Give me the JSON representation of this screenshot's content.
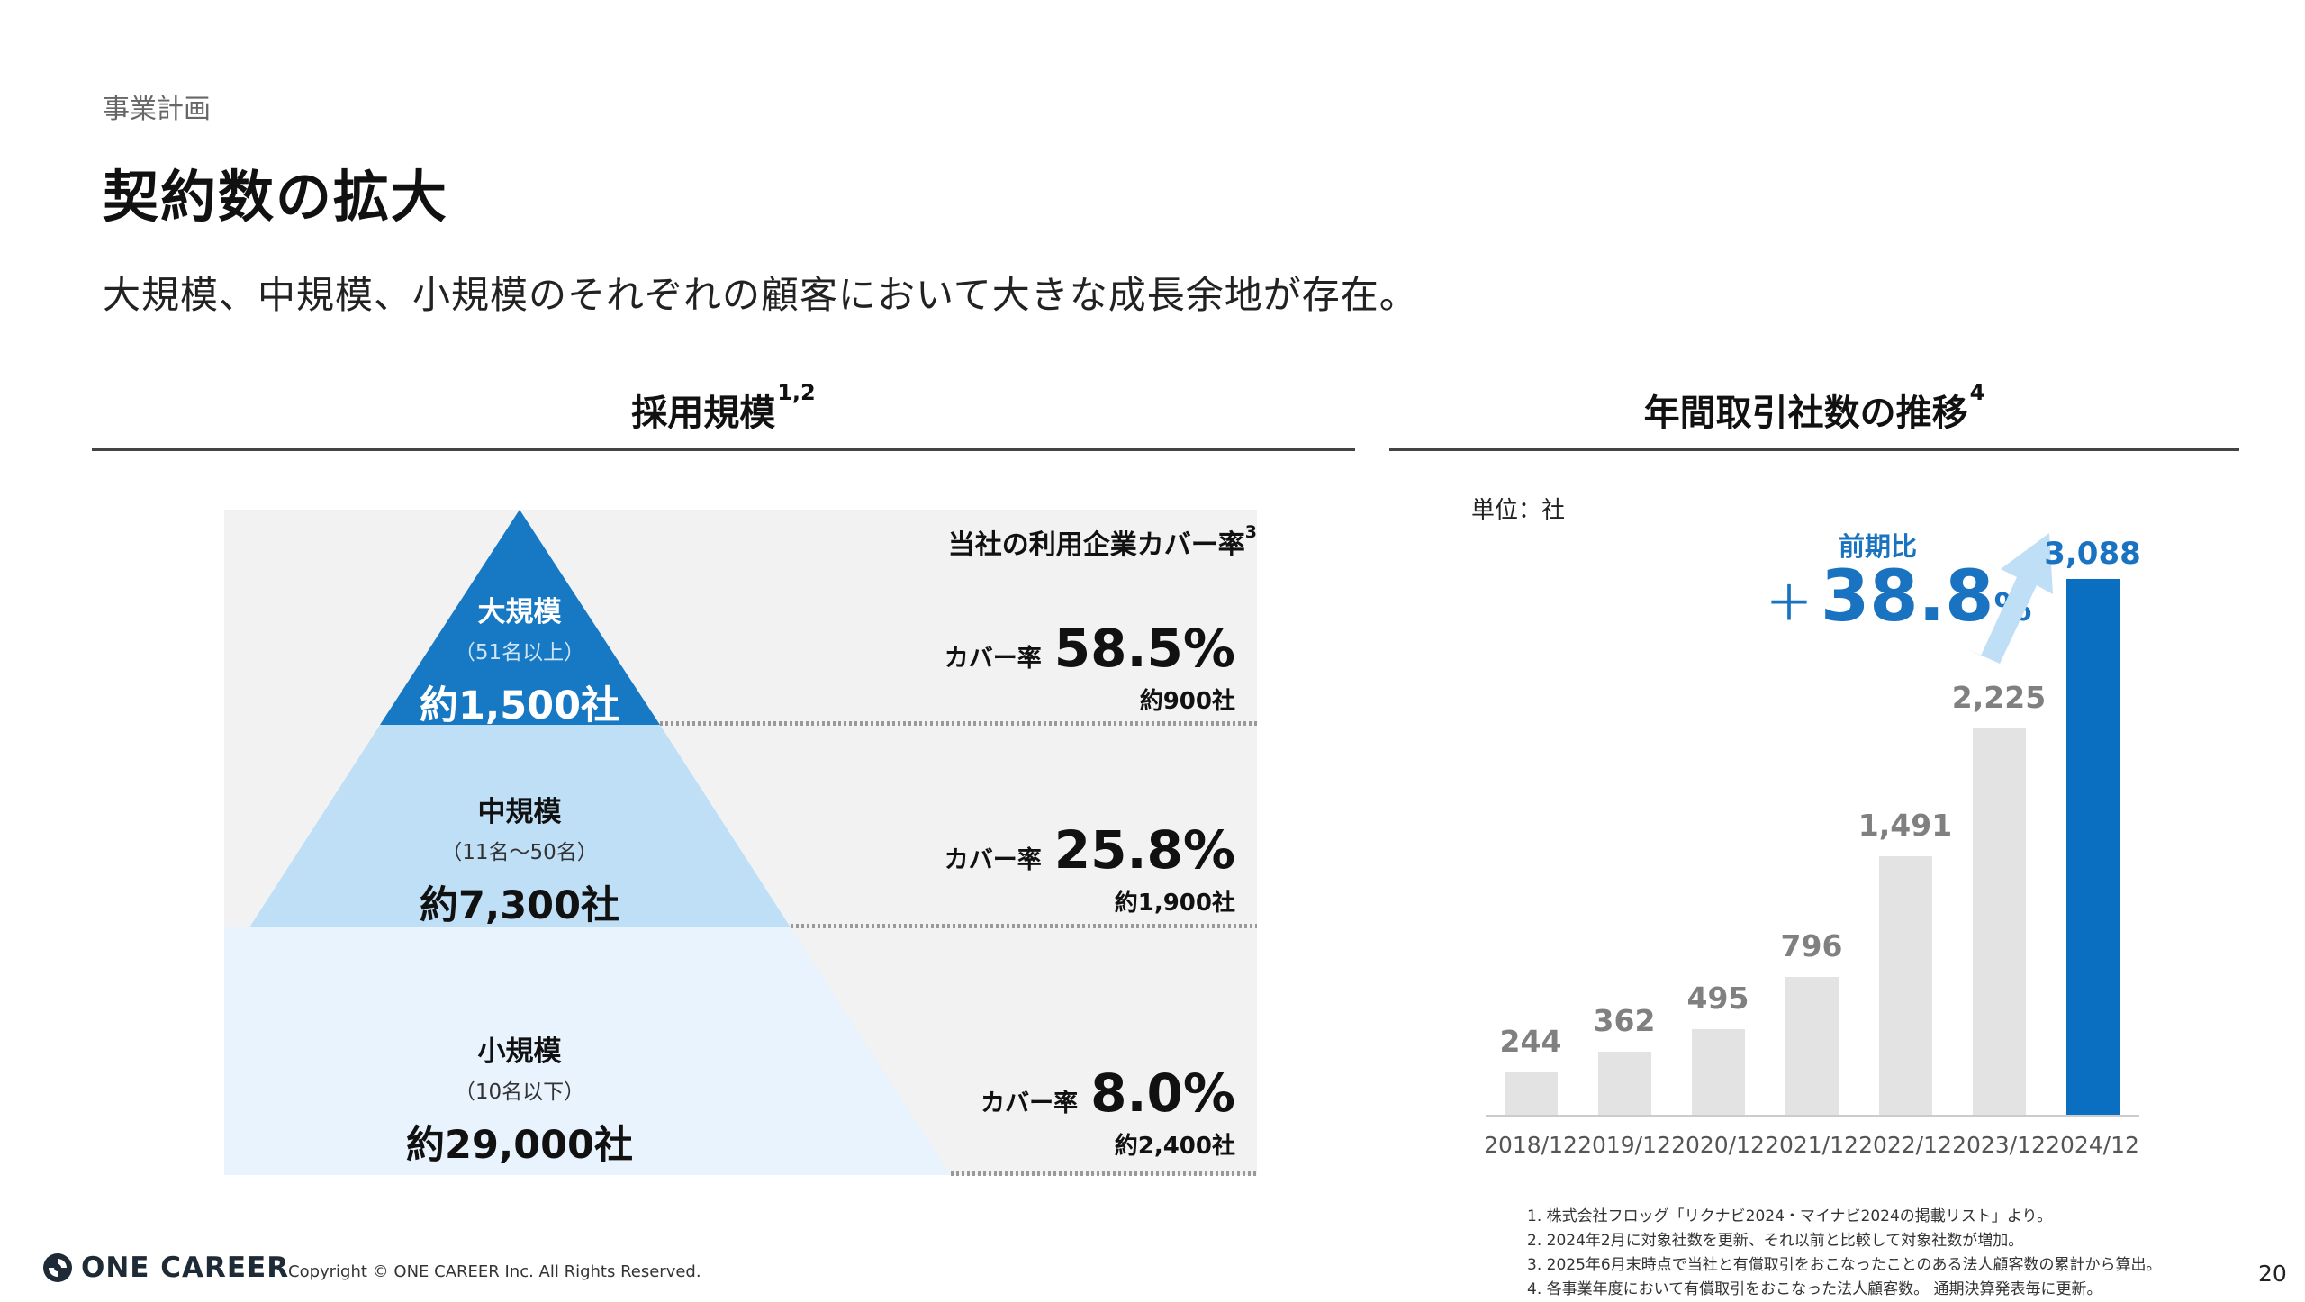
{
  "header": {
    "section": "事業計画",
    "title": "契約数の拡大",
    "subtitle": "大規模、中規模、小規模のそれぞれの顧客において大きな成長余地が存在。"
  },
  "left_panel": {
    "title": "採用規模",
    "title_sup": "1,2",
    "coverage_header": "当社の利用企業カバー率",
    "coverage_header_sup": "3",
    "tiers": [
      {
        "name": "大規模",
        "range": "（51名以上）",
        "count": "約1,500社",
        "cover_label": "カバー率",
        "cover_pct": "58.5%",
        "cover_count": "約900社",
        "color": "#1779c4"
      },
      {
        "name": "中規模",
        "range": "（11名～50名）",
        "count": "約7,300社",
        "cover_label": "カバー率",
        "cover_pct": "25.8%",
        "cover_count": "約1,900社",
        "color": "#bfdff7"
      },
      {
        "name": "小規模",
        "range": "（10名以下）",
        "count": "約29,000社",
        "cover_label": "カバー率",
        "cover_pct": "8.0%",
        "cover_count": "約2,400社",
        "color": "#e8f3fd"
      }
    ]
  },
  "right_panel": {
    "title": "年間取引社数の推移",
    "title_sup": "4",
    "unit": "単位：社",
    "growth_label": "前期比",
    "growth_plus": "＋",
    "growth_value": "38.8",
    "growth_pct": "%"
  },
  "chart_data": {
    "type": "bar",
    "title": "年間取引社数の推移",
    "xlabel": "",
    "ylabel": "単位：社",
    "categories": [
      "2018/12",
      "2019/12",
      "2020/12",
      "2021/12",
      "2022/12",
      "2023/12",
      "2024/12"
    ],
    "values": [
      244,
      362,
      495,
      796,
      1491,
      2225,
      3088
    ],
    "value_labels": [
      "244",
      "362",
      "495",
      "796",
      "1,491",
      "2,225",
      "3,088"
    ],
    "highlight_index": 6,
    "colors": {
      "default": "#e3e3e3",
      "highlight": "#0a6fc0"
    },
    "annotation": "前期比 ＋38.8%",
    "grid": false,
    "ylim": [
      0,
      3088
    ]
  },
  "footnotes": [
    "1. 株式会社フロッグ「リクナビ2024・マイナビ2024の掲載リスト」より。",
    "2. 2024年2月に対象社数を更新、それ以前と比較して対象社数が増加。",
    "3. 2025年6月末時点で当社と有償取引をおこなったことのある法人顧客数の累計から算出。",
    "4. 各事業年度において有償取引をおこなった法人顧客数。 通期決算発表毎に更新。"
  ],
  "footer": {
    "logo": "ONE CAREER",
    "copyright": "Copyright © ONE CAREER Inc. All Rights Reserved.",
    "page": "20"
  }
}
